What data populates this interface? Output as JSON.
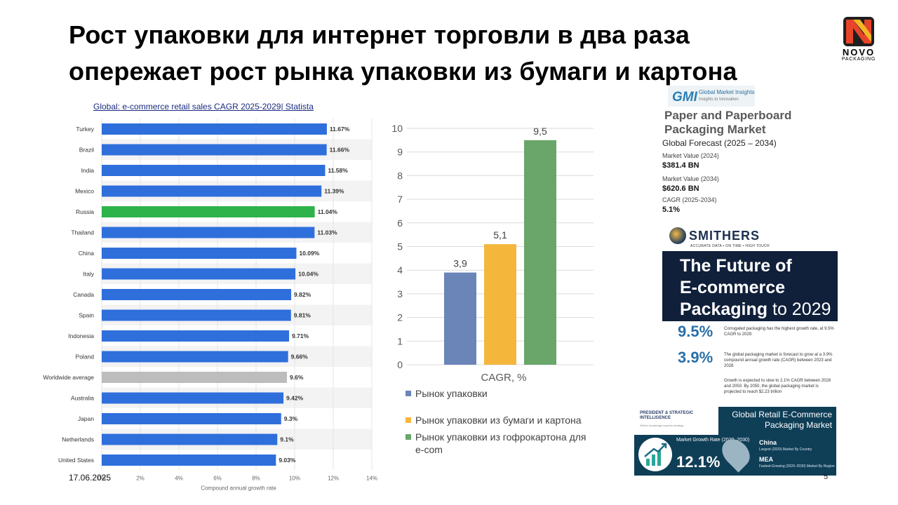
{
  "slide": {
    "title": "Рост упаковки для интернет торговли в два раза опережает рост рынка упаковки из бумаги и картона",
    "date": "17.06.2025",
    "page_number": "5"
  },
  "logo": {
    "name": "NOVO",
    "sub": "PACKAGING",
    "colors": {
      "red": "#e8442a",
      "yellow": "#f4b624",
      "dark": "#1f1f1f"
    }
  },
  "statista": {
    "link_text": "Global: e-commerce retail sales CAGR 2025-2029| Statista"
  },
  "cagr": {
    "legend": [
      {
        "label": "Рынок упаковки",
        "color": "#6b85b9"
      },
      {
        "label": "Рынок упаковки из бумаги и картона",
        "color": "#f4b73c"
      },
      {
        "label": "Рынок упаковки из гофрокартона для e-com",
        "color": "#6aa56a"
      }
    ]
  },
  "gmi": {
    "logo_mark": "GMI",
    "brand": "Global Market Insights",
    "tagline": "Insights to Innovation",
    "title": "Paper and Paperboard Packaging Market",
    "forecast": "Global Forecast (2025 – 2034)",
    "items": [
      {
        "label": "Market Value (2024)",
        "value": "$381.4 BN"
      },
      {
        "label": "Market Value (2034)",
        "value": "$620.6 BN"
      },
      {
        "label": "CAGR (2025-2034)",
        "value": "5.1%"
      }
    ]
  },
  "smithers": {
    "name": "SMITHERS",
    "tagline": "ACCURATE DATA • ON TIME • HIGH TOUCH",
    "banner_line1": "The Future of",
    "banner_line2": "E-commerce",
    "banner_line3": "Packaging",
    "banner_year": "to 2029",
    "stats": [
      {
        "big": "9.5%",
        "text": "Corrugated packaging has the highest growth rate, at 9.5% CAGR to 2029."
      },
      {
        "big": "3.9%",
        "text": "The global packaging market is forecast to grow at a 3.9% compound annual growth rate (CAGR) between 2023 and 2028"
      }
    ],
    "note": "Growth is expected to slow to 2.1% CAGR between 2028 and 2050. By 2050, the global packaging market is projected to reach $2.23 trillion"
  },
  "psi": {
    "logo_line1": "PRESIDENT & STRATEGIC",
    "logo_line2": "INTELLIGENCE",
    "logo_sub": "Where knowledge inspires strategy",
    "title": "Global Retail E-Commerce Packaging Market",
    "rate_label": "Market Growth Rate (2020–2030)",
    "rate": "12.1%",
    "country": "China",
    "country_sub": "Largest (2020) Market By Country",
    "region": "MEA",
    "region_sub": "Fastest-Growing (2020–2030) Market By Region"
  },
  "chart_data": [
    {
      "type": "bar",
      "orientation": "horizontal",
      "title": "Global: e-commerce retail sales CAGR 2025-2029| Statista",
      "xlabel": "Compound annual growth rate",
      "ylabel": "",
      "xlim": [
        0,
        14
      ],
      "xticks": [
        "0%",
        "2%",
        "4%",
        "6%",
        "8%",
        "10%",
        "12%",
        "14%"
      ],
      "categories": [
        "Turkey",
        "Brazil",
        "India",
        "Mexico",
        "Russia",
        "Thailand",
        "China",
        "Italy",
        "Canada",
        "Spain",
        "Indonesia",
        "Poland",
        "Worldwide average",
        "Australia",
        "Japan",
        "Netherlands",
        "United States"
      ],
      "values": [
        11.67,
        11.66,
        11.58,
        11.39,
        11.04,
        11.03,
        10.09,
        10.04,
        9.82,
        9.81,
        9.71,
        9.66,
        9.6,
        9.42,
        9.3,
        9.1,
        9.03
      ],
      "labels": [
        "11.67%",
        "11.66%",
        "11.58%",
        "11.39%",
        "11.04%",
        "11.03%",
        "10.09%",
        "10.04%",
        "9.82%",
        "9.81%",
        "9.71%",
        "9.66%",
        "9.6%",
        "9.42%",
        "9.3%",
        "9.1%",
        "9.03%"
      ],
      "highlight": {
        "Russia": "#2db34a",
        "Worldwide average": "#bdbdbd"
      },
      "bar_color": "#2f6fdc",
      "grid": true
    },
    {
      "type": "bar",
      "title": "",
      "xlabel": "",
      "ylabel": "",
      "categories": [
        "CAGR, %"
      ],
      "series": [
        {
          "name": "Рынок упаковки",
          "values": [
            3.9
          ],
          "label": "3,9",
          "color": "#6b85b9"
        },
        {
          "name": "Рынок упаковки из бумаги и картона",
          "values": [
            5.1
          ],
          "label": "5,1",
          "color": "#f4b73c"
        },
        {
          "name": "Рынок упаковки из гофрокартона для e-com",
          "values": [
            9.5
          ],
          "label": "9,5",
          "color": "#6aa56a"
        }
      ],
      "ylim": [
        0,
        10
      ],
      "yticks": [
        "0",
        "1",
        "2",
        "3",
        "4",
        "5",
        "6",
        "7",
        "8",
        "9",
        "10"
      ],
      "grid": true
    }
  ]
}
